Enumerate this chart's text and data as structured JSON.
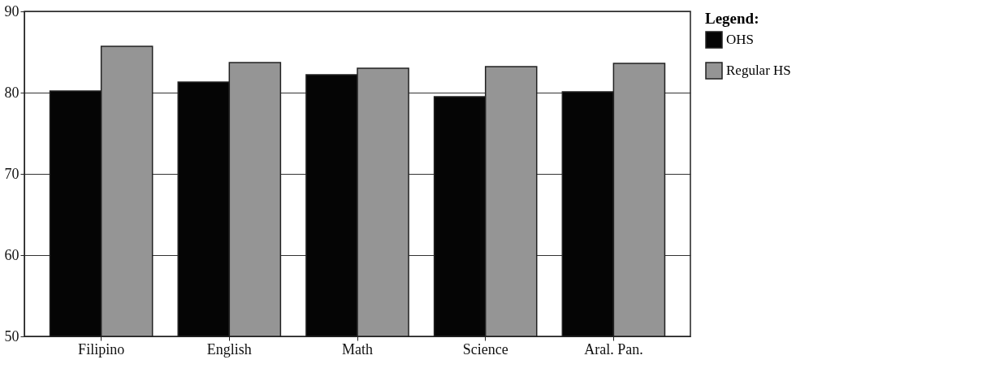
{
  "chart_data": {
    "type": "bar",
    "categories": [
      "Filipino",
      "English",
      "Math",
      "Science",
      "Aral. Pan."
    ],
    "series": [
      {
        "name": "OHS",
        "color": "#050505",
        "values": [
          80.2,
          81.3,
          82.2,
          79.5,
          80.1
        ]
      },
      {
        "name": "Regular HS",
        "color": "#959595",
        "values": [
          85.7,
          83.7,
          83.0,
          83.2,
          83.6
        ]
      }
    ],
    "ylim": [
      50,
      90
    ],
    "yticks": [
      50,
      60,
      70,
      80,
      90
    ],
    "grid": "y",
    "legend": "right",
    "legend_title": "Legend:"
  }
}
